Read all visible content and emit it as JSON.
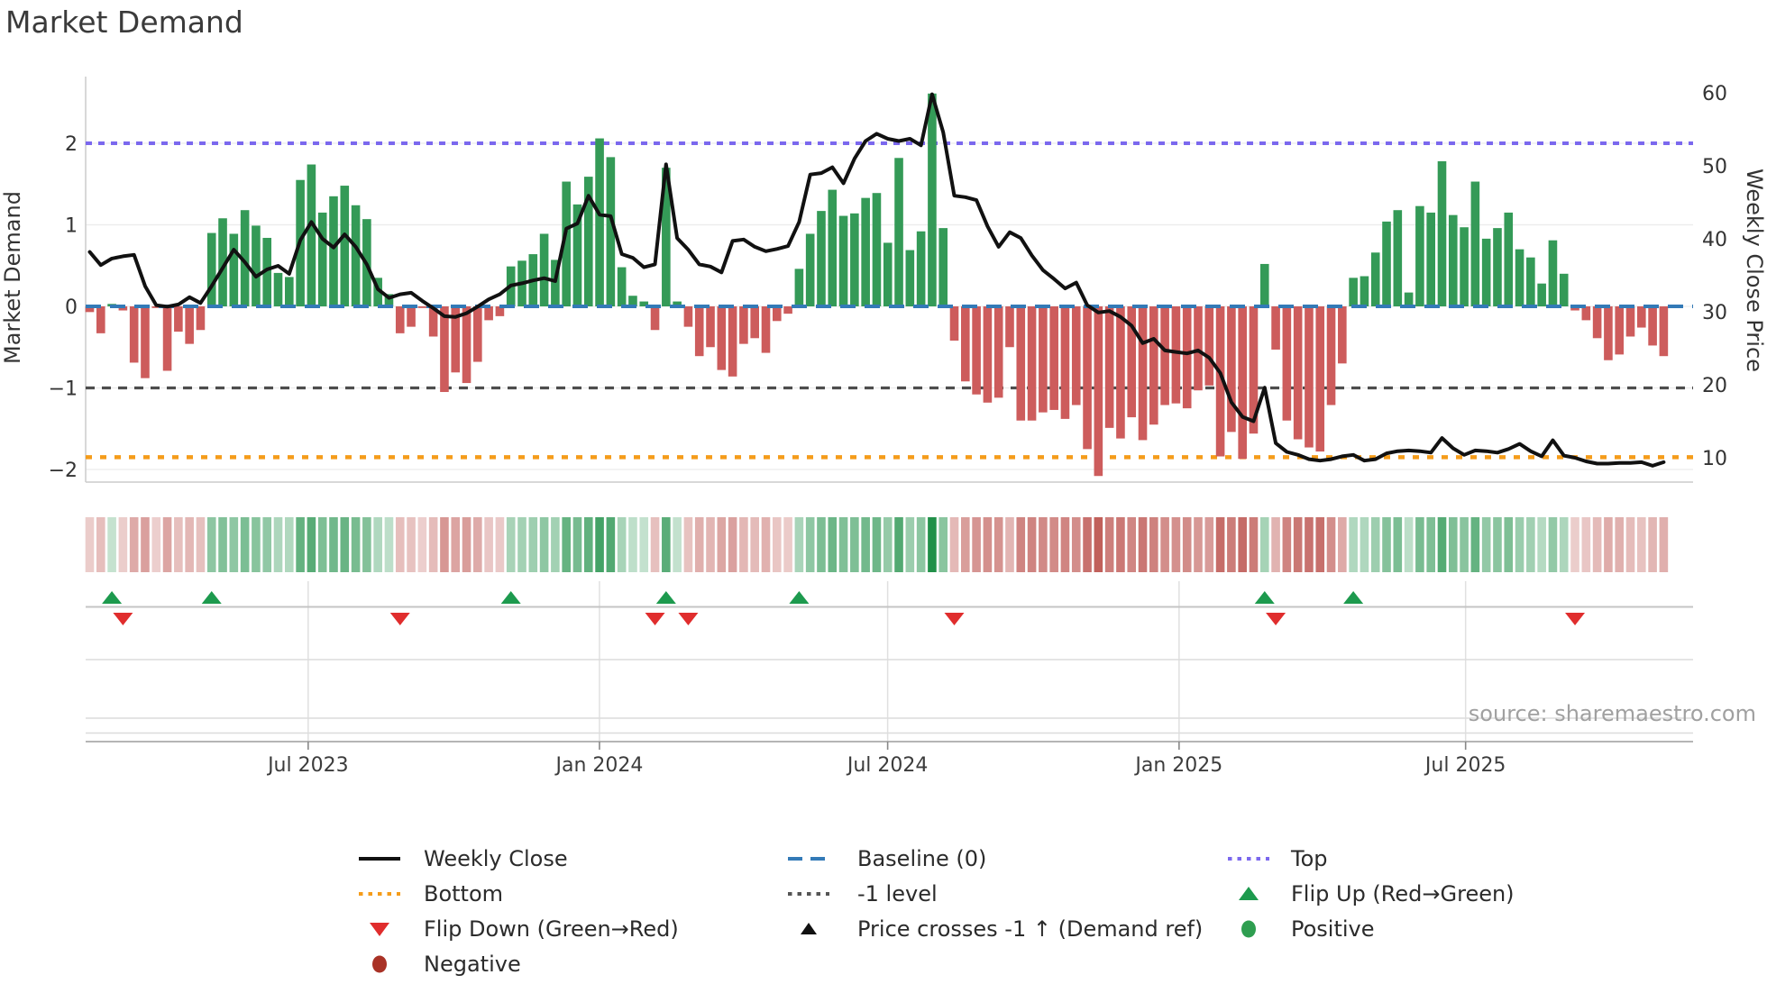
{
  "title": "Market Demand",
  "source": "source: sharemaestro.com",
  "axes": {
    "left_title": "Market Demand",
    "right_title": "Weekly Close Price",
    "left_ticks": [
      "2",
      "1",
      "0",
      "−1",
      "−2"
    ],
    "left_tick_values": [
      2,
      1,
      0,
      -1,
      -2
    ],
    "right_ticks": [
      "60",
      "50",
      "40",
      "30",
      "20",
      "10"
    ],
    "right_tick_values": [
      60,
      50,
      40,
      30,
      20,
      10
    ],
    "x_ticks": [
      {
        "label": "Jul 2023",
        "week": 19.71
      },
      {
        "label": "Jan 2024",
        "week": 45.99
      },
      {
        "label": "Jul 2024",
        "week": 71.99
      },
      {
        "label": "Jan 2025",
        "week": 98.28
      },
      {
        "label": "Jul 2025",
        "week": 124.13
      }
    ]
  },
  "colors": {
    "bar_positive": "#349a57",
    "bar_negative": "#cd5c5c",
    "price_line": "#111111",
    "baseline": "#337ab7",
    "top_level": "#7b68ee",
    "bottom_level": "#f59c1a",
    "minus_one_level": "#4d4d4d",
    "heat_positive": "#1e8f47",
    "heat_negative": "#b5413c",
    "flip_up": "#1d9a4e",
    "flip_down": "#e02d2d",
    "grid": "#ececec",
    "title_text": "#3a3a3a",
    "tick_text": "#333333",
    "source_text": "#a0a0a0"
  },
  "chart_data": {
    "type": "combo",
    "title": "Market Demand",
    "x_unit": "week",
    "start_date": "2023-02-13",
    "n_weeks": 143,
    "ylabel_left": "Market Demand",
    "ylabel_right": "Weekly Close Price",
    "ylim_demand": [
      -2.15,
      2.82
    ],
    "levels": {
      "top": 2.0,
      "baseline": 0.0,
      "minus_one": -1.0,
      "bottom": -1.85
    },
    "demand": [
      -0.07,
      -0.33,
      0.03,
      -0.05,
      -0.69,
      -0.88,
      -0.02,
      -0.79,
      -0.31,
      -0.46,
      -0.29,
      0.9,
      1.08,
      0.89,
      1.18,
      0.99,
      0.84,
      0.41,
      0.36,
      1.55,
      1.74,
      1.15,
      1.35,
      1.48,
      1.24,
      1.07,
      0.35,
      0.15,
      -0.33,
      -0.25,
      -0.02,
      -0.37,
      -1.05,
      -0.81,
      -0.94,
      -0.68,
      -0.17,
      -0.12,
      0.49,
      0.56,
      0.64,
      0.89,
      0.57,
      1.53,
      1.25,
      1.59,
      2.06,
      1.83,
      0.48,
      0.13,
      0.06,
      -0.29,
      1.7,
      0.06,
      -0.25,
      -0.61,
      -0.5,
      -0.78,
      -0.86,
      -0.46,
      -0.39,
      -0.57,
      -0.18,
      -0.09,
      0.46,
      0.89,
      1.17,
      1.43,
      1.11,
      1.14,
      1.33,
      1.39,
      0.78,
      1.82,
      0.69,
      0.92,
      2.61,
      0.96,
      -0.42,
      -0.92,
      -1.08,
      -1.18,
      -1.12,
      -0.5,
      -1.4,
      -1.4,
      -1.3,
      -1.27,
      -1.38,
      -1.21,
      -1.75,
      -2.08,
      -1.49,
      -1.62,
      -1.36,
      -1.64,
      -1.45,
      -1.21,
      -1.19,
      -1.25,
      -1.03,
      -0.97,
      -1.84,
      -1.54,
      -1.87,
      -1.56,
      0.52,
      -0.53,
      -1.4,
      -1.63,
      -1.73,
      -1.78,
      -1.21,
      -0.7,
      0.35,
      0.37,
      0.66,
      1.04,
      1.18,
      0.17,
      1.23,
      1.15,
      1.78,
      1.12,
      0.97,
      1.53,
      0.83,
      0.96,
      1.15,
      0.7,
      0.6,
      0.28,
      0.81,
      0.4,
      -0.05,
      -0.17,
      -0.39,
      -0.66,
      -0.59,
      -0.37,
      -0.26,
      -0.48,
      -0.61
    ],
    "weekly_close": [
      38.2,
      36.4,
      37.3,
      37.6,
      37.8,
      33.5,
      30.9,
      30.7,
      31.0,
      32.0,
      31.2,
      33.5,
      36.0,
      38.5,
      36.8,
      34.8,
      35.8,
      36.3,
      35.2,
      39.8,
      42.3,
      40.0,
      38.8,
      40.6,
      38.9,
      36.5,
      33.1,
      31.9,
      32.4,
      32.6,
      31.5,
      30.5,
      29.4,
      29.3,
      29.8,
      30.7,
      31.7,
      32.4,
      33.6,
      33.9,
      34.3,
      34.6,
      34.2,
      41.4,
      42.1,
      45.9,
      43.3,
      43.1,
      37.9,
      37.4,
      36.1,
      36.5,
      50.2,
      40.1,
      38.5,
      36.5,
      36.2,
      35.4,
      39.7,
      39.9,
      38.9,
      38.3,
      38.6,
      39.0,
      42.3,
      48.8,
      49.0,
      49.8,
      47.6,
      51.0,
      53.4,
      54.4,
      53.7,
      53.4,
      53.7,
      52.8,
      59.8,
      54.6,
      45.9,
      45.7,
      45.3,
      41.7,
      38.9,
      40.9,
      40.1,
      37.7,
      35.7,
      34.5,
      33.2,
      34.0,
      30.9,
      29.9,
      30.1,
      29.3,
      28.1,
      25.7,
      26.3,
      24.7,
      24.5,
      24.3,
      24.7,
      23.7,
      21.6,
      17.6,
      15.6,
      15.0,
      19.6,
      12.0,
      10.8,
      10.4,
      9.8,
      9.6,
      9.8,
      10.2,
      10.4,
      9.6,
      9.8,
      10.6,
      10.9,
      11.0,
      10.9,
      10.7,
      12.7,
      11.3,
      10.4,
      11.0,
      10.9,
      10.7,
      11.2,
      11.9,
      10.9,
      10.2,
      12.4,
      10.3,
      10.0,
      9.5,
      9.2,
      9.2,
      9.3,
      9.3,
      9.4,
      8.9,
      9.4
    ],
    "flip_up_weeks": [
      2,
      11,
      38,
      52,
      64,
      106,
      114
    ],
    "flip_down_weeks": [
      3,
      28,
      51,
      54,
      78,
      107,
      134
    ]
  },
  "legend": {
    "columns": [
      [
        {
          "label": "Weekly Close",
          "marker": "line",
          "color": "#111111"
        },
        {
          "label": "Bottom",
          "marker": "dotted",
          "color": "#f59c1a"
        },
        {
          "label": "Flip Down (Green→Red)",
          "marker": "tri-down",
          "color": "#e02d2d"
        },
        {
          "label": "Negative",
          "marker": "circle",
          "color": "#a93226"
        }
      ],
      [
        {
          "label": "Baseline (0)",
          "marker": "dashed",
          "color": "#337ab7"
        },
        {
          "label": "-1 level",
          "marker": "dotted",
          "color": "#555555"
        },
        {
          "label": "Price crosses -1 ↑ (Demand ref)",
          "marker": "tri-up-small",
          "color": "#111111"
        }
      ],
      [
        {
          "label": "Top",
          "marker": "dotted",
          "color": "#7b68ee"
        },
        {
          "label": "Flip Up (Red→Green)",
          "marker": "tri-up",
          "color": "#1d9a4e"
        },
        {
          "label": "Positive",
          "marker": "circle",
          "color": "#2e9e50"
        }
      ]
    ]
  }
}
